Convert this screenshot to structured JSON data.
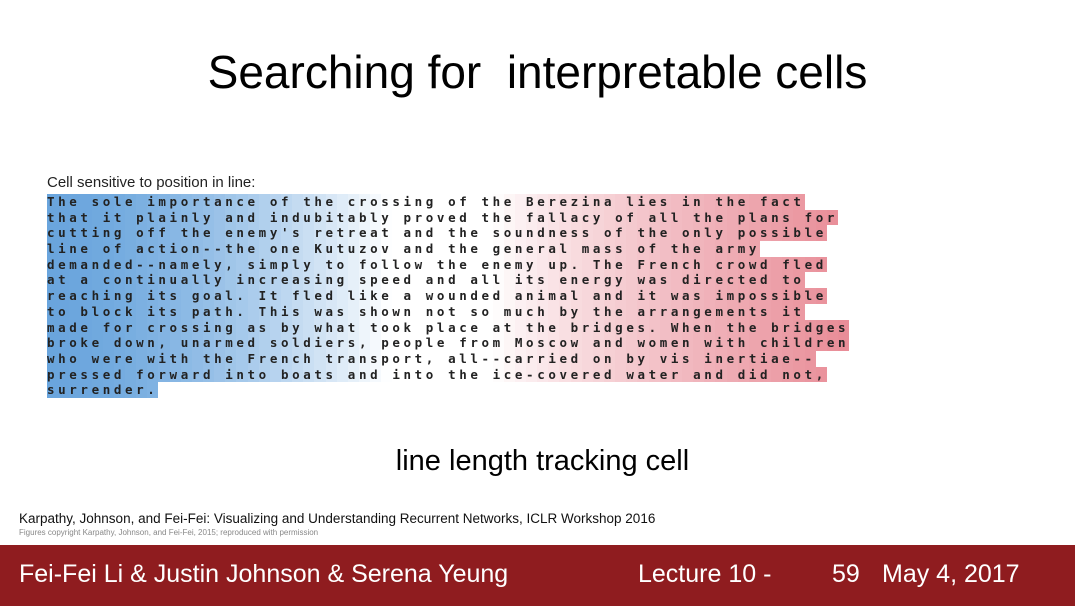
{
  "slide": {
    "title": "Searching for  interpretable cells",
    "subtitle": "line length tracking cell"
  },
  "figure": {
    "label": "Cell sensitive to position in line:",
    "colors": {
      "negative": "#6aa5dd",
      "neutral": "#ffffff",
      "positive": "#e88a95"
    },
    "lines": [
      "The sole importance of the crossing of the Berezina lies in the fact",
      "that it plainly and indubitably proved the fallacy of all the plans for",
      "cutting off the enemy's retreat and the soundness of the only possible",
      "line of action--the one Kutuzov and the general mass of the army",
      "demanded--namely, simply to follow the enemy up. The French crowd fled",
      "at a continually increasing speed and all its energy was directed to",
      "reaching its goal. It fled like a wounded animal and it was impossible",
      "to block its path. This was shown not so much by the arrangements it",
      "made for crossing as by what took place at the bridges. When the bridges",
      "broke down, unarmed soldiers, people from Moscow and women with children",
      "who were with the French transport, all--carried on by vis inertiae--",
      "pressed forward into boats and into the ice-covered water and did not,",
      "surrender."
    ]
  },
  "citation": {
    "main": "Karpathy, Johnson, and Fei-Fei: Visualizing and Understanding Recurrent Networks, ICLR Workshop 2016",
    "copyright": "Figures copyright Karpathy, Johnson, and Fei-Fei, 2015; reproduced with permission"
  },
  "footer": {
    "authors": "Fei-Fei Li & Justin Johnson & Serena Yeung",
    "lecture": "Lecture 10 -",
    "page": "59",
    "date": "May 4, 2017"
  }
}
